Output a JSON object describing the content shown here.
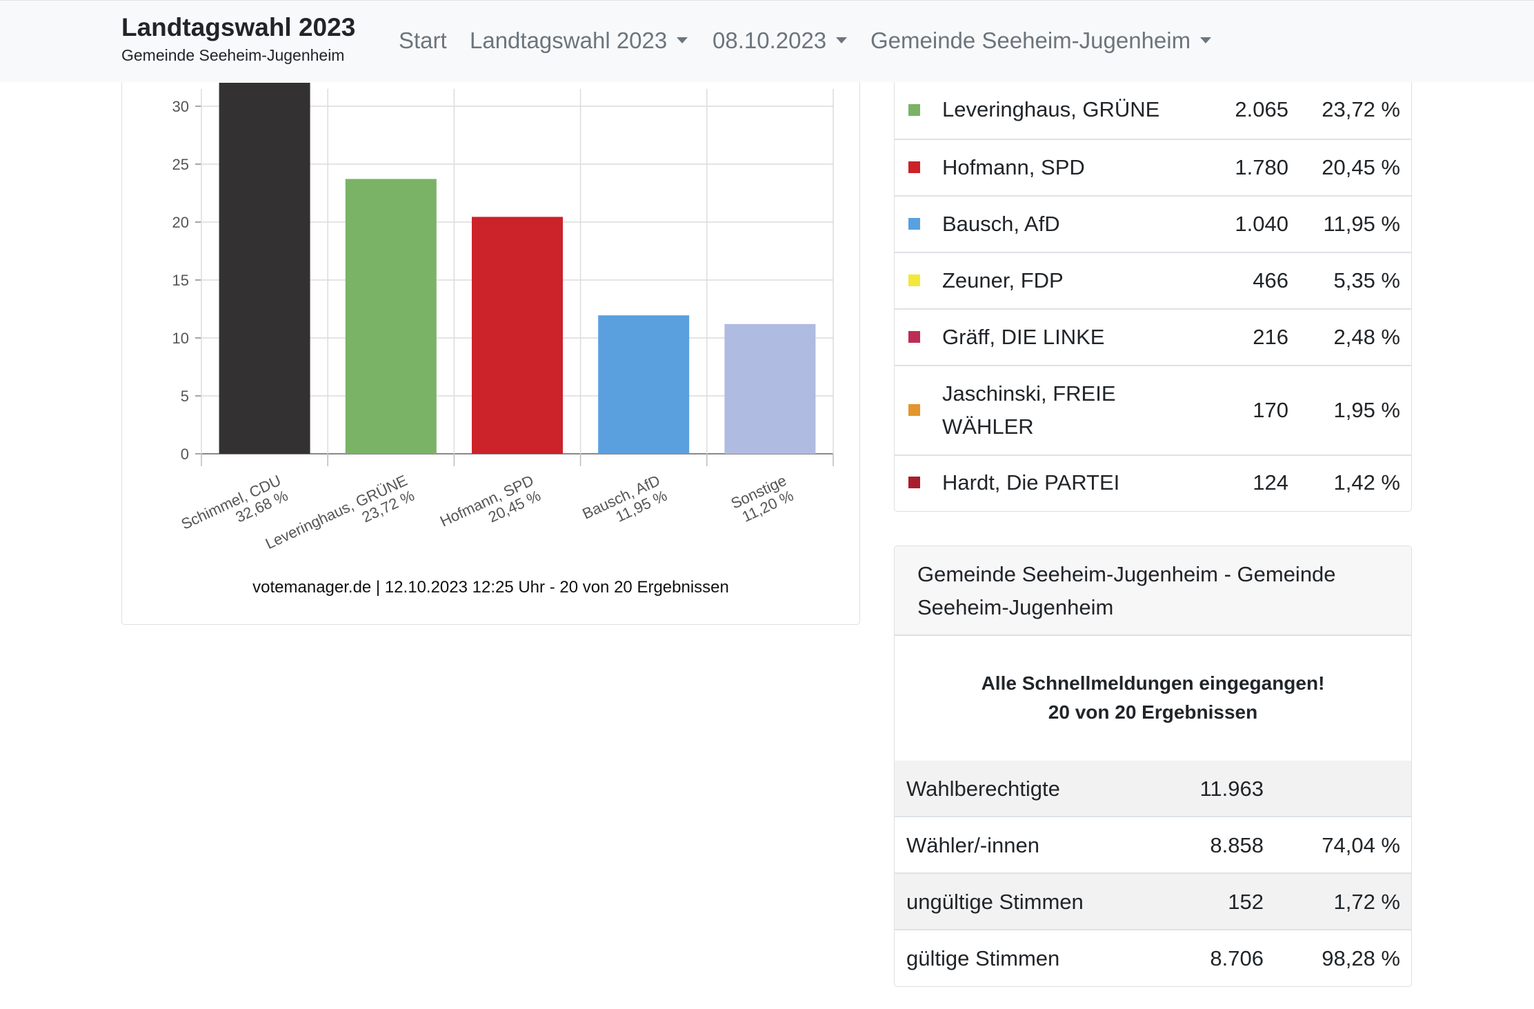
{
  "navbar": {
    "brand_title": "Landtagswahl 2023",
    "brand_subtitle": "Gemeinde Seeheim-Jugenheim",
    "items": [
      {
        "label": "Start",
        "dropdown": false
      },
      {
        "label": "Landtagswahl 2023",
        "dropdown": true
      },
      {
        "label": "08.10.2023",
        "dropdown": true
      },
      {
        "label": "Gemeinde Seeheim-Jugenheim",
        "dropdown": true
      }
    ]
  },
  "chart_data": {
    "type": "bar",
    "title": "",
    "xlabel": "",
    "ylabel": "",
    "ylim": [
      0,
      30
    ],
    "yticks": [
      "0",
      "5",
      "10",
      "15",
      "20",
      "25",
      "30"
    ],
    "grid": true,
    "categories": [
      "Schimmel, CDU",
      "Leveringhaus, GRÜNE",
      "Hofmann, SPD",
      "Bausch, AfD",
      "Sonstige"
    ],
    "value_labels": [
      "32,68 %",
      "23,72 %",
      "20,45 %",
      "11,95 %",
      "11,20 %"
    ],
    "values": [
      32.68,
      23.72,
      20.45,
      11.95,
      11.2
    ],
    "colors": [
      "#333132",
      "#7ab366",
      "#cc222a",
      "#5aa0df",
      "#b0bbe2"
    ],
    "credit": "votemanager.de | 12.10.2023 12:25 Uhr - 20 von 20 Ergebnissen"
  },
  "results": {
    "rows": [
      {
        "name": "Leveringhaus, GRÜNE",
        "votes": "2.065",
        "percent": "23,72 %",
        "color": "#7ab366"
      },
      {
        "name": "Hofmann, SPD",
        "votes": "1.780",
        "percent": "20,45 %",
        "color": "#cc222a"
      },
      {
        "name": "Bausch, AfD",
        "votes": "1.040",
        "percent": "11,95 %",
        "color": "#5aa0df"
      },
      {
        "name": "Zeuner, FDP",
        "votes": "466",
        "percent": "5,35 %",
        "color": "#f4e73a"
      },
      {
        "name": "Gräff, DIE LINKE",
        "votes": "216",
        "percent": "2,48 %",
        "color": "#be2c56"
      },
      {
        "name_line1": "Jaschinski, FREIE",
        "name_line2": "WÄHLER",
        "votes": "170",
        "percent": "1,95 %",
        "color": "#e3962d"
      },
      {
        "name": "Hardt, Die PARTEI",
        "votes": "124",
        "percent": "1,42 %",
        "color": "#a81e2d"
      }
    ]
  },
  "summary": {
    "title": "Gemeinde Seeheim-Jugenheim - Gemeinde Seeheim-Jugenheim",
    "notice_line1": "Alle Schnellmeldungen eingegangen!",
    "notice_line2": "20 von 20 Ergebnissen",
    "stats": [
      {
        "label": "Wahlberechtigte",
        "count": "11.963",
        "percent": ""
      },
      {
        "label": "Wähler/-innen",
        "count": "8.858",
        "percent": "74,04 %"
      },
      {
        "label": "ungültige Stimmen",
        "count": "152",
        "percent": "1,72 %"
      },
      {
        "label": "gültige Stimmen",
        "count": "8.706",
        "percent": "98,28 %"
      }
    ]
  }
}
